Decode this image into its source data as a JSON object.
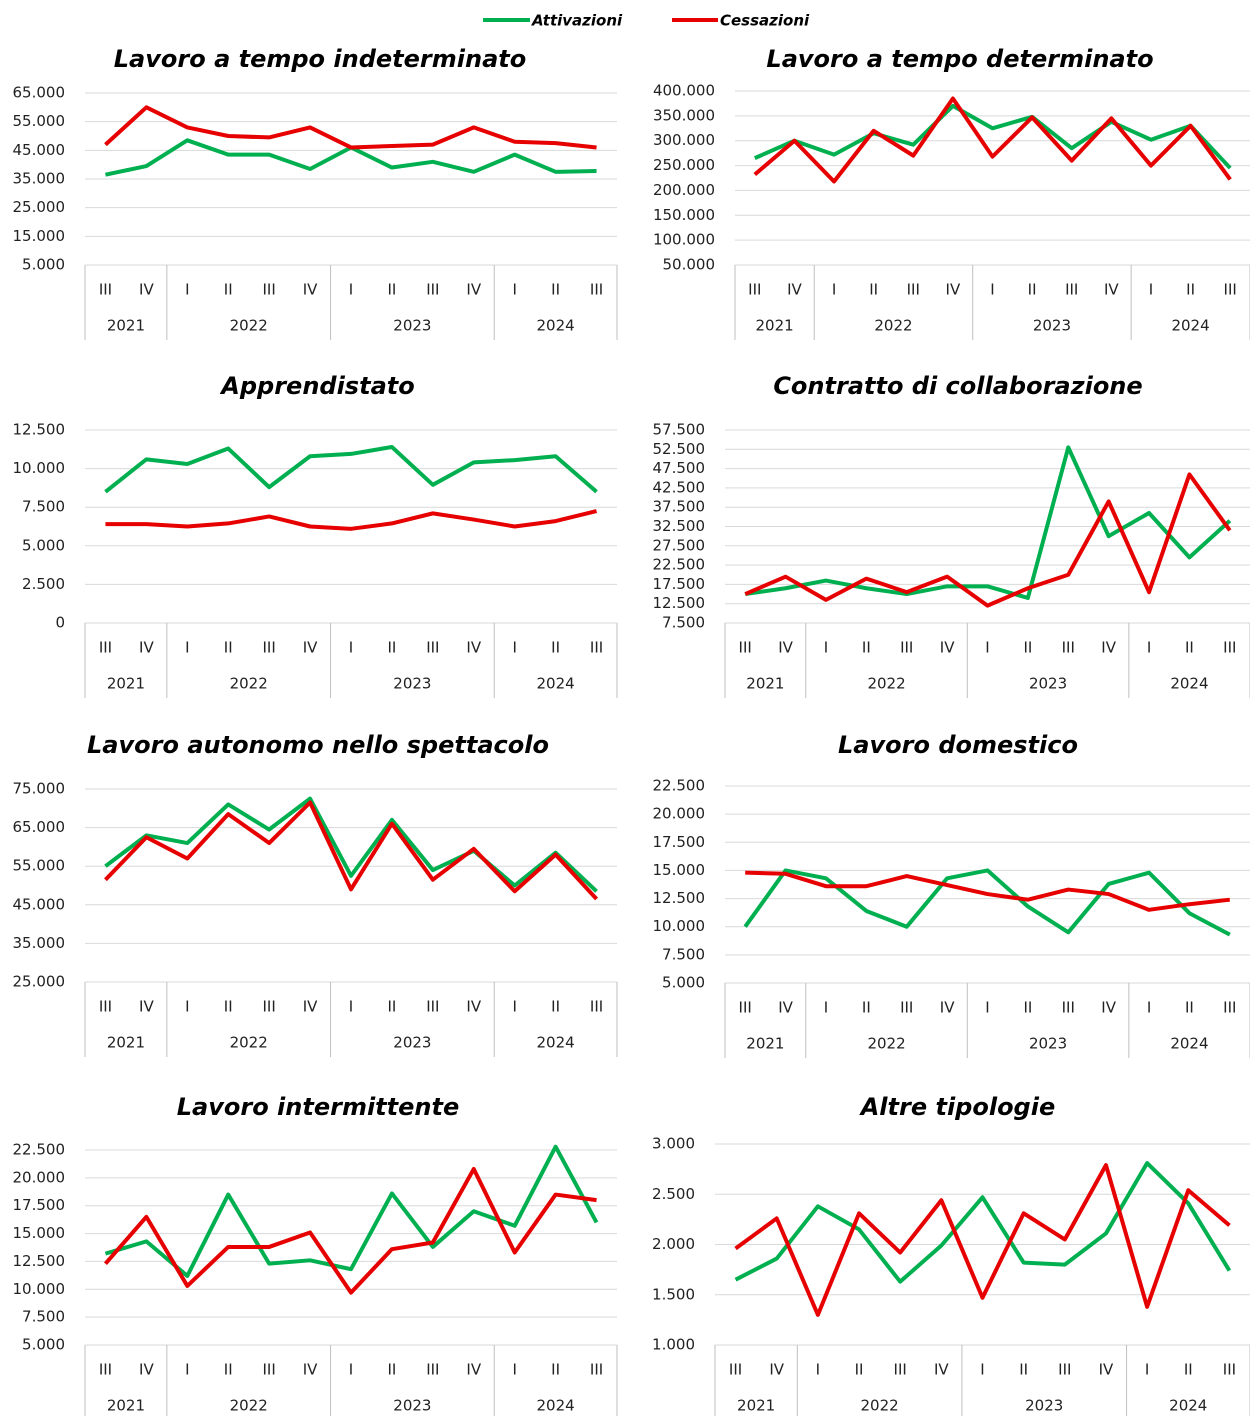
{
  "chart_data": [
    {
      "type": "line",
      "title": "Lavoro a tempo indeterminato",
      "categories": [
        "III",
        "IV",
        "I",
        "II",
        "III",
        "IV",
        "I",
        "II",
        "III",
        "IV",
        "I",
        "II",
        "III"
      ],
      "groups": [
        {
          "label": "2021",
          "span": 2
        },
        {
          "label": "2022",
          "span": 4
        },
        {
          "label": "2023",
          "span": 4
        },
        {
          "label": "2024",
          "span": 3
        }
      ],
      "series": [
        {
          "name": "Attivazioni",
          "color": "#00b050",
          "values": [
            36500,
            39500,
            48500,
            43500,
            43500,
            38500,
            46000,
            39000,
            41000,
            37500,
            43500,
            37500,
            37800
          ]
        },
        {
          "name": "Cessazioni",
          "color": "#e60000",
          "values": [
            47000,
            60000,
            53000,
            50000,
            49500,
            53000,
            46000,
            46500,
            47000,
            53000,
            48000,
            47500,
            46000
          ]
        }
      ],
      "ylim": [
        5000,
        65000
      ],
      "yticks": [
        {
          "value": 5000,
          "label": "5.000"
        },
        {
          "value": 15000,
          "label": "15.000"
        },
        {
          "value": 25000,
          "label": "25.000"
        },
        {
          "value": 35000,
          "label": "35.000"
        },
        {
          "value": 45000,
          "label": "45.000"
        },
        {
          "value": 55000,
          "label": "55.000"
        },
        {
          "value": 65000,
          "label": "65.000"
        }
      ],
      "grid": true
    },
    {
      "type": "line",
      "title": "Lavoro a tempo determinato",
      "categories": [
        "III",
        "IV",
        "I",
        "II",
        "III",
        "IV",
        "I",
        "II",
        "III",
        "IV",
        "I",
        "II",
        "III"
      ],
      "groups": [
        {
          "label": "2021",
          "span": 2
        },
        {
          "label": "2022",
          "span": 4
        },
        {
          "label": "2023",
          "span": 4
        },
        {
          "label": "2024",
          "span": 3
        }
      ],
      "series": [
        {
          "name": "Attivazioni",
          "color": "#00b050",
          "values": [
            265000,
            300000,
            272000,
            315000,
            292000,
            370000,
            325000,
            348000,
            285000,
            338000,
            302000,
            330000,
            245000
          ]
        },
        {
          "name": "Cessazioni",
          "color": "#e60000",
          "values": [
            232000,
            300000,
            218000,
            320000,
            270000,
            385000,
            268000,
            347000,
            260000,
            345000,
            250000,
            330000,
            222000
          ]
        }
      ],
      "ylim": [
        50000,
        400000
      ],
      "yticks": [
        {
          "value": 50000,
          "label": "50.000"
        },
        {
          "value": 100000,
          "label": "100.000"
        },
        {
          "value": 150000,
          "label": "150.000"
        },
        {
          "value": 200000,
          "label": "200.000"
        },
        {
          "value": 250000,
          "label": "250.000"
        },
        {
          "value": 300000,
          "label": "300.000"
        },
        {
          "value": 350000,
          "label": "350.000"
        },
        {
          "value": 400000,
          "label": "400.000"
        }
      ],
      "grid": true
    },
    {
      "type": "line",
      "title": "Apprendistato",
      "categories": [
        "III",
        "IV",
        "I",
        "II",
        "III",
        "IV",
        "I",
        "II",
        "III",
        "IV",
        "I",
        "II",
        "III"
      ],
      "groups": [
        {
          "label": "2021",
          "span": 2
        },
        {
          "label": "2022",
          "span": 4
        },
        {
          "label": "2023",
          "span": 4
        },
        {
          "label": "2024",
          "span": 3
        }
      ],
      "series": [
        {
          "name": "Attivazioni",
          "color": "#00b050",
          "values": [
            8500,
            10600,
            10300,
            11300,
            8800,
            10800,
            10950,
            11400,
            8950,
            10400,
            10550,
            10800,
            8500
          ]
        },
        {
          "name": "Cessazioni",
          "color": "#e60000",
          "values": [
            6400,
            6400,
            6250,
            6450,
            6900,
            6250,
            6100,
            6450,
            7100,
            6700,
            6250,
            6600,
            7250
          ]
        }
      ],
      "ylim": [
        0,
        12500
      ],
      "yticks": [
        0,
        {
          "value": 2500,
          "label": "2.500"
        },
        {
          "value": 5000,
          "label": "5.000"
        },
        {
          "value": 7500,
          "label": "7.500"
        },
        {
          "value": 10000,
          "label": "10.000"
        },
        {
          "value": 12500,
          "label": "12.500"
        }
      ],
      "grid": true
    },
    {
      "type": "line",
      "title": "Contratto di collaborazione",
      "categories": [
        "III",
        "IV",
        "I",
        "II",
        "III",
        "IV",
        "I",
        "II",
        "III",
        "IV",
        "I",
        "II",
        "III"
      ],
      "groups": [
        {
          "label": "2021",
          "span": 2
        },
        {
          "label": "2022",
          "span": 4
        },
        {
          "label": "2023",
          "span": 4
        },
        {
          "label": "2024",
          "span": 3
        }
      ],
      "series": [
        {
          "name": "Attivazioni",
          "color": "#00b050",
          "values": [
            15000,
            16500,
            18500,
            16500,
            15000,
            17000,
            17000,
            14000,
            53000,
            30000,
            36000,
            24500,
            34000
          ]
        },
        {
          "name": "Cessazioni",
          "color": "#e60000",
          "values": [
            15000,
            19500,
            13500,
            19000,
            15500,
            19500,
            12000,
            16500,
            20000,
            39000,
            15500,
            46000,
            31500
          ]
        }
      ],
      "ylim": [
        7500,
        57500
      ],
      "yticks": [
        {
          "value": 7500,
          "label": "7.500"
        },
        {
          "value": 12500,
          "label": "12.500"
        },
        {
          "value": 17500,
          "label": "17.500"
        },
        {
          "value": 22500,
          "label": "22.500"
        },
        {
          "value": 27500,
          "label": "27.500"
        },
        {
          "value": 32500,
          "label": "32.500"
        },
        {
          "value": 37500,
          "label": "37.500"
        },
        {
          "value": 42500,
          "label": "42.500"
        },
        {
          "value": 47500,
          "label": "47.500"
        },
        {
          "value": 52500,
          "label": "52.500"
        },
        {
          "value": 57500,
          "label": "57.500"
        }
      ],
      "grid": true
    },
    {
      "type": "line",
      "title": "Lavoro autonomo nello spettacolo",
      "categories": [
        "III",
        "IV",
        "I",
        "II",
        "III",
        "IV",
        "I",
        "II",
        "III",
        "IV",
        "I",
        "II",
        "III"
      ],
      "groups": [
        {
          "label": "2021",
          "span": 2
        },
        {
          "label": "2022",
          "span": 4
        },
        {
          "label": "2023",
          "span": 4
        },
        {
          "label": "2024",
          "span": 3
        }
      ],
      "series": [
        {
          "name": "Attivazioni",
          "color": "#00b050",
          "values": [
            55000,
            63000,
            61000,
            71000,
            64500,
            72500,
            52500,
            67000,
            54000,
            59000,
            50000,
            58500,
            48500
          ]
        },
        {
          "name": "Cessazioni",
          "color": "#e60000",
          "values": [
            51500,
            62500,
            57000,
            68500,
            61000,
            71500,
            49000,
            66000,
            51500,
            59500,
            48500,
            58000,
            46500
          ]
        }
      ],
      "ylim": [
        25000,
        75000
      ],
      "yticks": [
        {
          "value": 25000,
          "label": "25.000"
        },
        {
          "value": 35000,
          "label": "35.000"
        },
        {
          "value": 45000,
          "label": "45.000"
        },
        {
          "value": 55000,
          "label": "55.000"
        },
        {
          "value": 65000,
          "label": "65.000"
        },
        {
          "value": 75000,
          "label": "75.000"
        }
      ],
      "grid": true
    },
    {
      "type": "line",
      "title": "Lavoro domestico",
      "categories": [
        "III",
        "IV",
        "I",
        "II",
        "III",
        "IV",
        "I",
        "II",
        "III",
        "IV",
        "I",
        "II",
        "III"
      ],
      "groups": [
        {
          "label": "2021",
          "span": 2
        },
        {
          "label": "2022",
          "span": 4
        },
        {
          "label": "2023",
          "span": 4
        },
        {
          "label": "2024",
          "span": 3
        }
      ],
      "series": [
        {
          "name": "Attivazioni",
          "color": "#00b050",
          "values": [
            10000,
            15000,
            14300,
            11400,
            10000,
            14300,
            15000,
            11800,
            9500,
            13800,
            14800,
            11200,
            9300
          ]
        },
        {
          "name": "Cessazioni",
          "color": "#e60000",
          "values": [
            14800,
            14700,
            13600,
            13600,
            14500,
            13700,
            12900,
            12400,
            13300,
            12900,
            11500,
            12000,
            12400
          ]
        }
      ],
      "ylim": [
        5000,
        22500
      ],
      "yticks": [
        {
          "value": 5000,
          "label": "5.000"
        },
        {
          "value": 7500,
          "label": "7.500"
        },
        {
          "value": 10000,
          "label": "10.000"
        },
        {
          "value": 12500,
          "label": "12.500"
        },
        {
          "value": 15000,
          "label": "15.000"
        },
        {
          "value": 17500,
          "label": "17.500"
        },
        {
          "value": 20000,
          "label": "20.000"
        },
        {
          "value": 22500,
          "label": "22.500"
        }
      ],
      "grid": true
    },
    {
      "type": "line",
      "title": "Lavoro intermittente",
      "categories": [
        "III",
        "IV",
        "I",
        "II",
        "III",
        "IV",
        "I",
        "II",
        "III",
        "IV",
        "I",
        "II",
        "III"
      ],
      "groups": [
        {
          "label": "2021",
          "span": 2
        },
        {
          "label": "2022",
          "span": 4
        },
        {
          "label": "2023",
          "span": 4
        },
        {
          "label": "2024",
          "span": 3
        }
      ],
      "series": [
        {
          "name": "Attivazioni",
          "color": "#00b050",
          "values": [
            13200,
            14300,
            11200,
            18500,
            12300,
            12600,
            11800,
            18600,
            13800,
            17000,
            15700,
            22800,
            16000
          ]
        },
        {
          "name": "Cessazioni",
          "color": "#e60000",
          "values": [
            12300,
            16500,
            10300,
            13800,
            13800,
            15100,
            9700,
            13600,
            14200,
            20800,
            13300,
            18500,
            18000
          ]
        }
      ],
      "ylim": [
        5000,
        22500
      ],
      "yticks": [
        {
          "value": 5000,
          "label": "5.000"
        },
        {
          "value": 7500,
          "label": "7.500"
        },
        {
          "value": 10000,
          "label": "10.000"
        },
        {
          "value": 12500,
          "label": "12.500"
        },
        {
          "value": 15000,
          "label": "15.000"
        },
        {
          "value": 17500,
          "label": "17.500"
        },
        {
          "value": 20000,
          "label": "20.000"
        },
        {
          "value": 22500,
          "label": "22.500"
        }
      ],
      "grid": true
    },
    {
      "type": "line",
      "title": "Altre tipologie",
      "categories": [
        "III",
        "IV",
        "I",
        "II",
        "III",
        "IV",
        "I",
        "II",
        "III",
        "IV",
        "I",
        "II",
        "III"
      ],
      "groups": [
        {
          "label": "2021",
          "span": 2
        },
        {
          "label": "2022",
          "span": 4
        },
        {
          "label": "2023",
          "span": 4
        },
        {
          "label": "2024",
          "span": 3
        }
      ],
      "series": [
        {
          "name": "Attivazioni",
          "color": "#00b050",
          "values": [
            1650,
            1860,
            2380,
            2150,
            1630,
            1990,
            2470,
            1820,
            1800,
            2110,
            2810,
            2410,
            1740
          ]
        },
        {
          "name": "Cessazioni",
          "color": "#e60000",
          "values": [
            1960,
            2260,
            1300,
            2310,
            1920,
            2440,
            1470,
            2310,
            2050,
            2790,
            1380,
            2540,
            2190
          ]
        }
      ],
      "ylim": [
        1000,
        3000
      ],
      "yticks": [
        {
          "value": 1000,
          "label": "1.000"
        },
        {
          "value": 1500,
          "label": "1.500"
        },
        {
          "value": 2000,
          "label": "2.000"
        },
        {
          "value": 2500,
          "label": "2.500"
        },
        {
          "value": 3000,
          "label": "3.000"
        }
      ],
      "grid": true
    }
  ]
}
